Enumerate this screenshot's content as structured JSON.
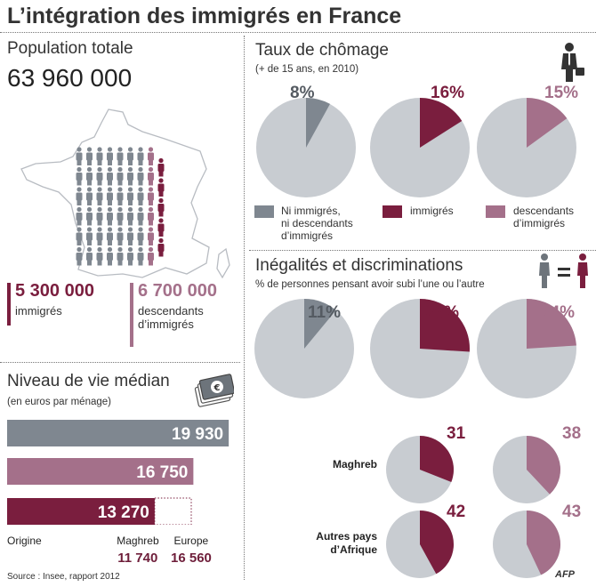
{
  "header": {
    "title": "L’intégration des immigrés en France"
  },
  "population": {
    "label": "Population totale",
    "total": "63 960 000",
    "immigres_value": "5 300 000",
    "immigres_label": "immigrés",
    "descendants_value": "6 700 000",
    "descendants_label_1": "descendants",
    "descendants_label_2": "d’immigrés"
  },
  "colors": {
    "grey_dark": "#7f8790",
    "grey_light": "#c8ccd1",
    "maroon": "#7a1e3e",
    "mauve": "#a4708a"
  },
  "icons": [
    "france-map-icon",
    "person-icon",
    "businessman-icon",
    "euro-banknote-icon"
  ],
  "footer": {
    "source": "Source : Insee, rapport 2012",
    "agency": "AFP"
  },
  "chart_data": [
    {
      "type": "bar",
      "title": "Niveau de vie médian",
      "subtitle": "(en euros par ménage)",
      "categories": [
        "Ni immigrés, ni descendants d’immigrés",
        "descendants d’immigrés",
        "immigrés"
      ],
      "values": [
        19930,
        16750,
        13270
      ],
      "value_labels": [
        "19 930",
        "16 750",
        "13 270"
      ],
      "xlim": [
        0,
        20000
      ],
      "origin_breakdown": [
        {
          "label": "Origine",
          "value": null,
          "value_label": ""
        },
        {
          "label": "Maghreb",
          "value": 11740,
          "value_label": "11 740"
        },
        {
          "label": "Europe",
          "value": 16560,
          "value_label": "16 560"
        }
      ]
    },
    {
      "type": "pie",
      "title": "Taux de chômage",
      "subtitle": "(+ de 15 ans, en 2010)",
      "series": [
        {
          "name": "Ni immigrés, ni descendants d’immigrés",
          "value": 8,
          "label": "8%"
        },
        {
          "name": "immigrés",
          "value": 16,
          "label": "16%"
        },
        {
          "name": "descendants d’immigrés",
          "value": 15,
          "label": "15%"
        }
      ],
      "legend": [
        {
          "lines": [
            "Ni immigrés,",
            "ni descendants",
            "d’immigrés"
          ]
        },
        {
          "lines": [
            "immigrés"
          ]
        },
        {
          "lines": [
            "descendants",
            "d’immigrés"
          ]
        }
      ]
    },
    {
      "type": "pie",
      "title": "Inégalités et discriminations",
      "subtitle": "% de personnes pensant avoir subi l’une ou l’autre",
      "series": [
        {
          "name": "Ni immigrés, ni descendants d’immigrés",
          "value": 11,
          "label": "11%"
        },
        {
          "name": "immigrés",
          "value": 26,
          "label": "26%"
        },
        {
          "name": "descendants d’immigrés",
          "value": 24,
          "label": "24%"
        }
      ],
      "by_origin": [
        {
          "origin_lines": [
            "Maghreb"
          ],
          "immigres": 31,
          "descendants": 38
        },
        {
          "origin_lines": [
            "Autres pays",
            "d’Afrique"
          ],
          "immigres": 42,
          "descendants": 43
        }
      ]
    }
  ]
}
